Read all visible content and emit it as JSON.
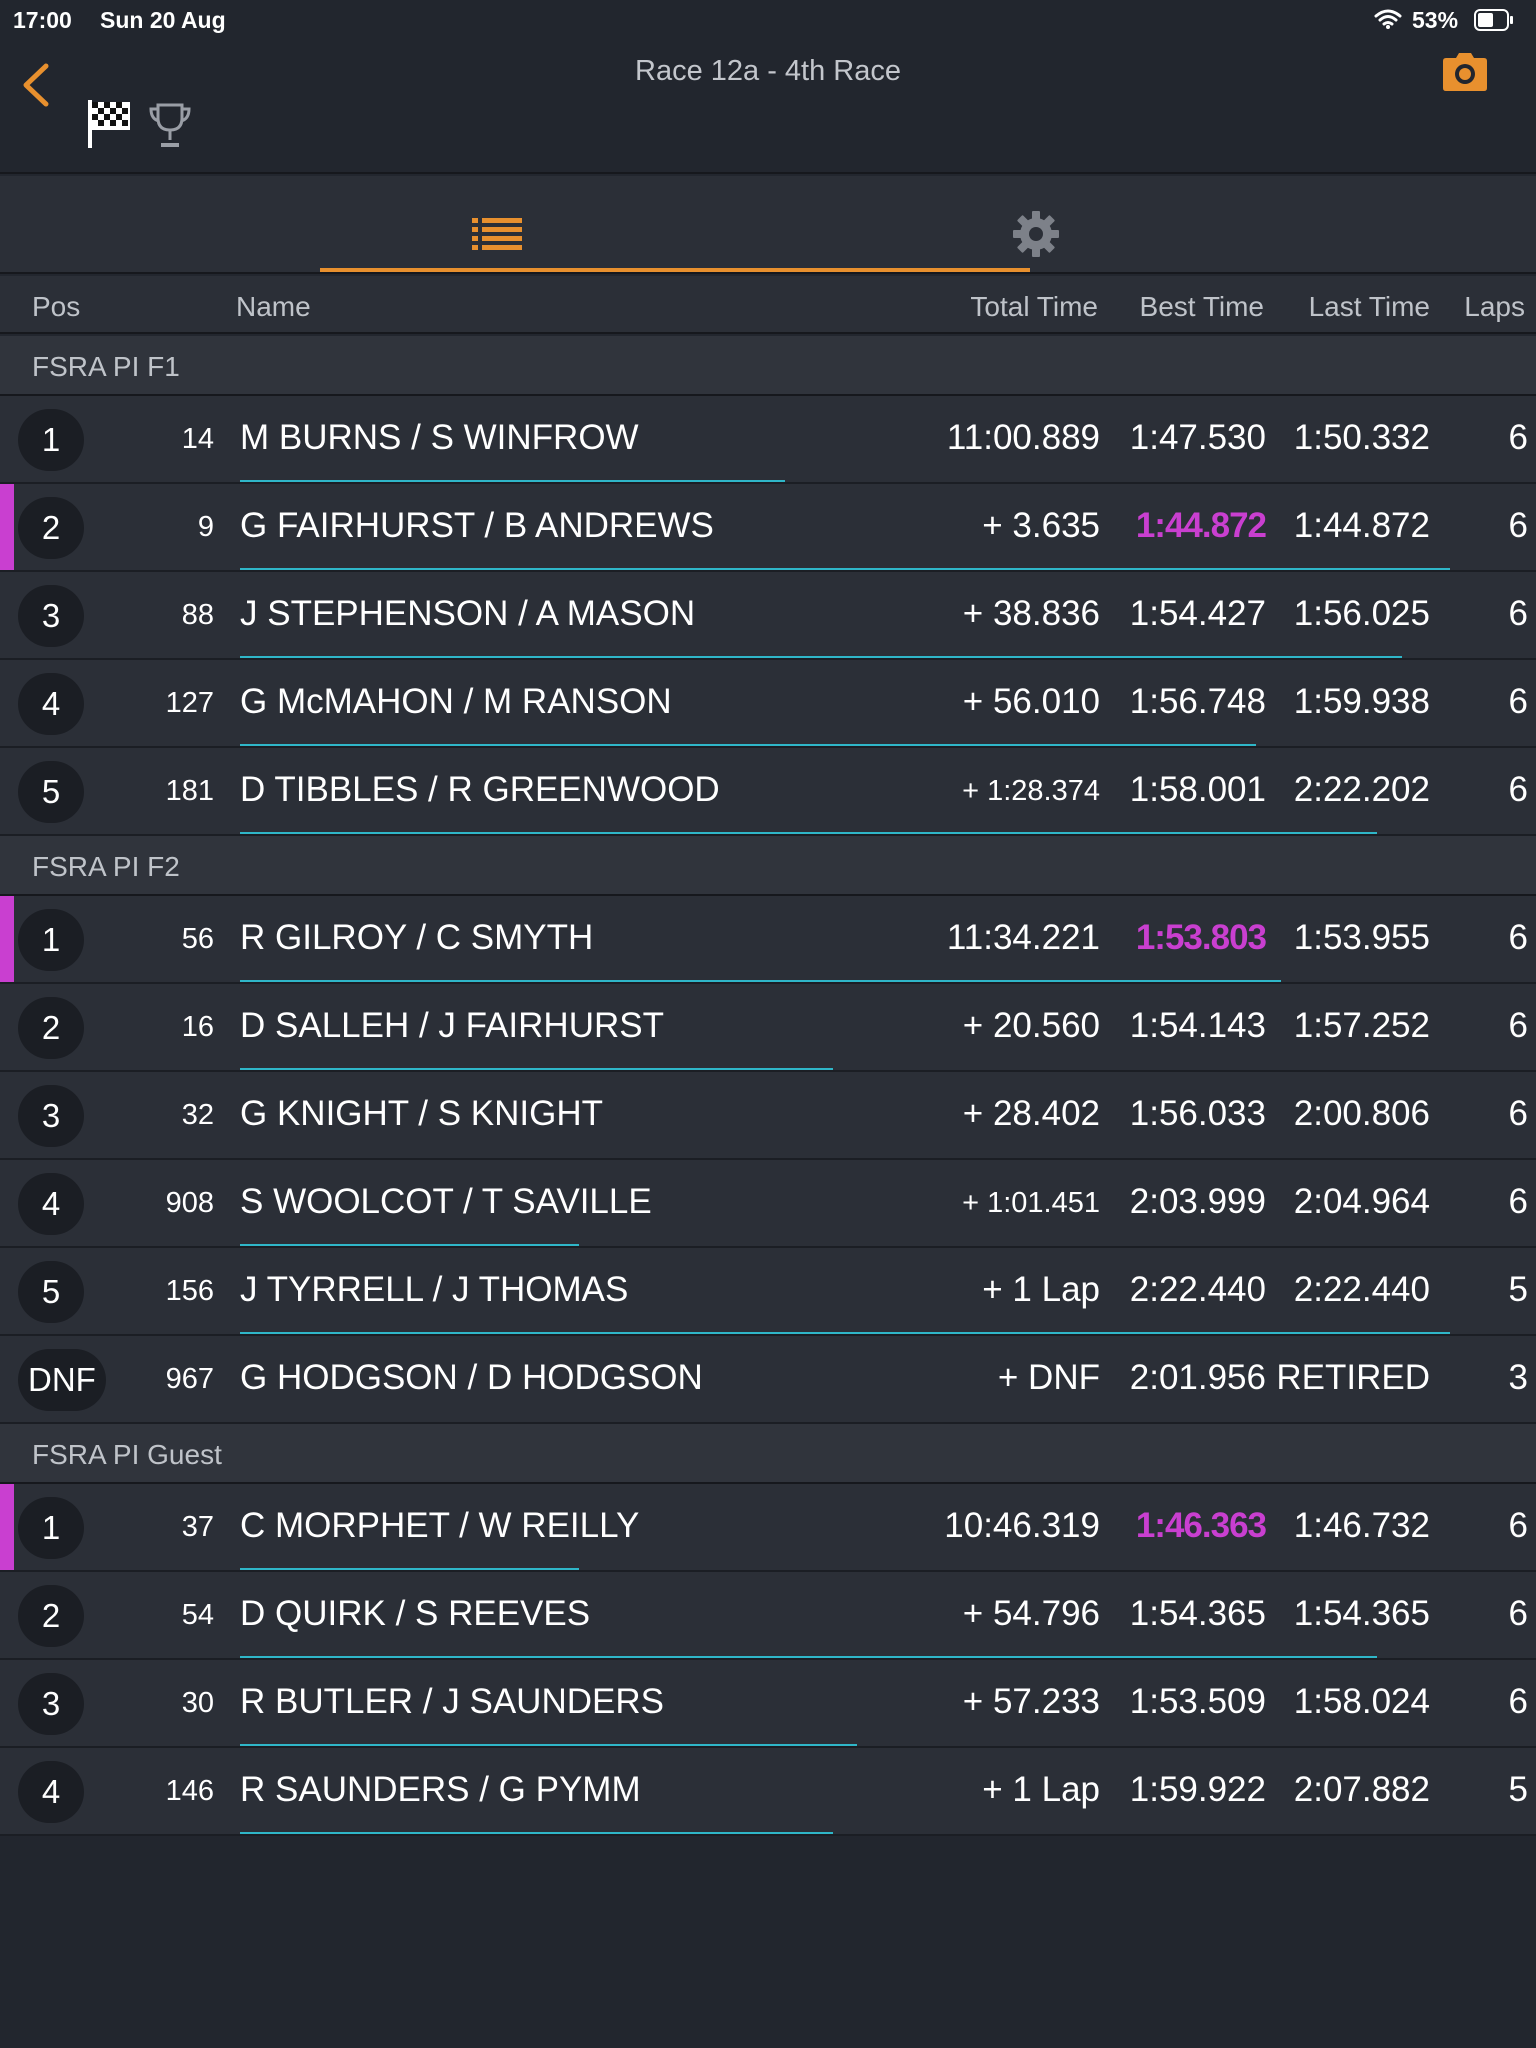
{
  "status_bar": {
    "time": "17:00",
    "date": "Sun 20 Aug",
    "battery": "53%"
  },
  "header": {
    "title": "Race 12a - 4th Race"
  },
  "columns": {
    "pos": "Pos",
    "name": "Name",
    "total": "Total Time",
    "best": "Best Time",
    "last": "Last Time",
    "laps": "Laps"
  },
  "colors": {
    "accent": "#e8902e",
    "fastest": "#c93fd0",
    "progress": "#2fb6c8"
  },
  "groups": [
    {
      "name": "FSRA PI F1",
      "rows": [
        {
          "pos": "1",
          "num": "14",
          "name": "M BURNS / S WINFROW",
          "total": "11:00.889",
          "best": "1:47.530",
          "last": "1:50.332",
          "laps": "6",
          "fastest": false,
          "progress": 0.45
        },
        {
          "pos": "2",
          "num": "9",
          "name": "G FAIRHURST / B ANDREWS",
          "total": "+ 3.635",
          "best": "1:44.872",
          "last": "1:44.872",
          "laps": "6",
          "fastest": true,
          "progress": 1.0
        },
        {
          "pos": "3",
          "num": "88",
          "name": "J STEPHENSON / A MASON",
          "total": "+ 38.836",
          "best": "1:54.427",
          "last": "1:56.025",
          "laps": "6",
          "fastest": false,
          "progress": 0.96
        },
        {
          "pos": "4",
          "num": "127",
          "name": "G McMAHON / M RANSON",
          "total": "+ 56.010",
          "best": "1:56.748",
          "last": "1:59.938",
          "laps": "6",
          "fastest": false,
          "progress": 0.84
        },
        {
          "pos": "5",
          "num": "181",
          "name": "D TIBBLES / R GREENWOOD",
          "total": "+ 1:28.374",
          "best": "1:58.001",
          "last": "2:22.202",
          "laps": "6",
          "fastest": false,
          "progress": 0.94
        }
      ]
    },
    {
      "name": "FSRA PI F2",
      "rows": [
        {
          "pos": "1",
          "num": "56",
          "name": "R GILROY / C SMYTH",
          "total": "11:34.221",
          "best": "1:53.803",
          "last": "1:53.955",
          "laps": "6",
          "fastest": true,
          "progress": 0.86
        },
        {
          "pos": "2",
          "num": "16",
          "name": "D SALLEH / J FAIRHURST",
          "total": "+ 20.560",
          "best": "1:54.143",
          "last": "1:57.252",
          "laps": "6",
          "fastest": false,
          "progress": 0.49
        },
        {
          "pos": "3",
          "num": "32",
          "name": "G KNIGHT / S KNIGHT",
          "total": "+ 28.402",
          "best": "1:56.033",
          "last": "2:00.806",
          "laps": "6",
          "fastest": false,
          "progress": 0.0
        },
        {
          "pos": "4",
          "num": "908",
          "name": "S WOOLCOT / T SAVILLE",
          "total": "+ 1:01.451",
          "best": "2:03.999",
          "last": "2:04.964",
          "laps": "6",
          "fastest": false,
          "progress": 0.28
        },
        {
          "pos": "5",
          "num": "156",
          "name": "J TYRRELL / J THOMAS",
          "total": "+ 1 Lap",
          "best": "2:22.440",
          "last": "2:22.440",
          "laps": "5",
          "fastest": false,
          "progress": 1.0
        },
        {
          "pos": "DNF",
          "num": "967",
          "name": "G HODGSON /  D HODGSON",
          "total": "+ DNF",
          "best": "2:01.956",
          "last": "RETIRED",
          "laps": "3",
          "fastest": false,
          "progress": 0.0
        }
      ]
    },
    {
      "name": "FSRA PI Guest",
      "rows": [
        {
          "pos": "1",
          "num": "37",
          "name": "C MORPHET / W REILLY",
          "total": "10:46.319",
          "best": "1:46.363",
          "last": "1:46.732",
          "laps": "6",
          "fastest": true,
          "progress": 0.28
        },
        {
          "pos": "2",
          "num": "54",
          "name": "D QUIRK / S REEVES",
          "total": "+ 54.796",
          "best": "1:54.365",
          "last": "1:54.365",
          "laps": "6",
          "fastest": false,
          "progress": 0.94
        },
        {
          "pos": "3",
          "num": "30",
          "name": "R BUTLER / J SAUNDERS",
          "total": "+ 57.233",
          "best": "1:53.509",
          "last": "1:58.024",
          "laps": "6",
          "fastest": false,
          "progress": 0.51
        },
        {
          "pos": "4",
          "num": "146",
          "name": "R SAUNDERS / G PYMM",
          "total": "+ 1 Lap",
          "best": "1:59.922",
          "last": "2:07.882",
          "laps": "5",
          "fastest": false,
          "progress": 0.49
        }
      ]
    }
  ]
}
